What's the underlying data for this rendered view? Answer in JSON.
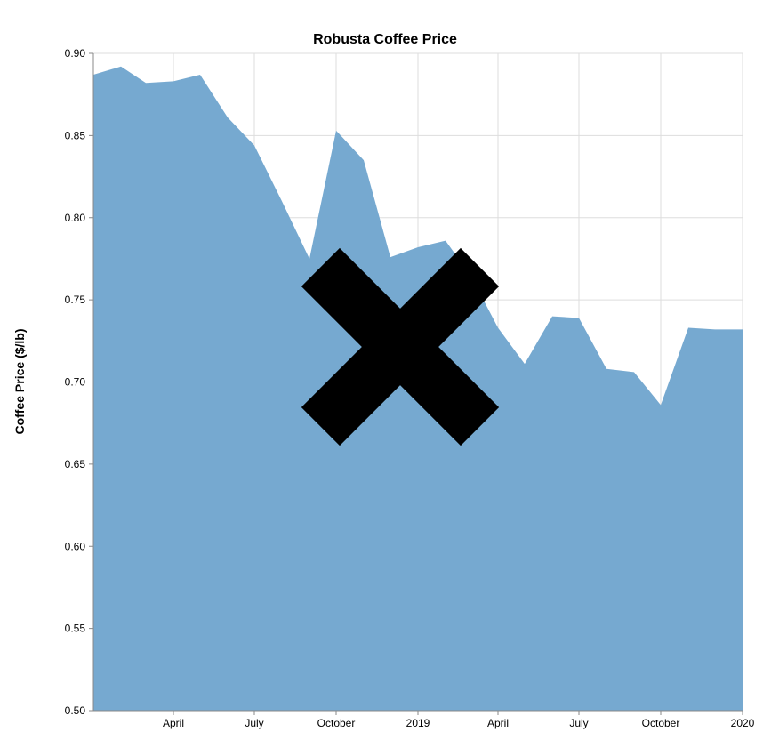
{
  "chart_data": {
    "type": "area",
    "title": "Robusta Coffee Price",
    "xlabel": "",
    "ylabel": "Coffee Price ($/lb)",
    "ylim": [
      0.5,
      0.9
    ],
    "xlim": [
      "2018-01-01",
      "2020-01-01"
    ],
    "grid": true,
    "area_color": "#76a9d0",
    "overlay_mark": "black X over center of chart",
    "x_tick_labels": [
      {
        "date": "2018-04-01",
        "label": "April"
      },
      {
        "date": "2018-07-01",
        "label": "July"
      },
      {
        "date": "2018-10-01",
        "label": "October"
      },
      {
        "date": "2019-01-01",
        "label": "2019"
      },
      {
        "date": "2019-04-01",
        "label": "April"
      },
      {
        "date": "2019-07-01",
        "label": "July"
      },
      {
        "date": "2019-10-01",
        "label": "October"
      },
      {
        "date": "2020-01-01",
        "label": "2020"
      }
    ],
    "y_ticks": [
      0.9,
      0.85,
      0.8,
      0.75,
      0.7,
      0.65,
      0.6,
      0.55,
      0.5
    ],
    "y_tick_labels": [
      "0.90",
      "0.85",
      "0.80",
      "0.75",
      "0.70",
      "0.65",
      "0.60",
      "0.55",
      "0.50"
    ],
    "series": [
      {
        "x": [
          "2018-01-01",
          "2018-02-01",
          "2018-03-01",
          "2018-04-01",
          "2018-05-01",
          "2018-06-01",
          "2018-07-01",
          "2018-08-01",
          "2018-09-01",
          "2018-10-01",
          "2018-11-01",
          "2018-12-01",
          "2019-01-01",
          "2019-02-01",
          "2019-03-01",
          "2019-04-01",
          "2019-05-01",
          "2019-06-01",
          "2019-07-01",
          "2019-08-01",
          "2019-09-01",
          "2019-10-01",
          "2019-11-01",
          "2019-12-01",
          "2020-01-01"
        ],
        "values": [
          0.887,
          0.892,
          0.882,
          0.883,
          0.887,
          0.861,
          0.844,
          0.81,
          0.775,
          0.853,
          0.835,
          0.776,
          0.782,
          0.786,
          0.765,
          0.733,
          0.711,
          0.74,
          0.739,
          0.708,
          0.706,
          0.686,
          0.733,
          0.732,
          0.732
        ]
      }
    ]
  }
}
